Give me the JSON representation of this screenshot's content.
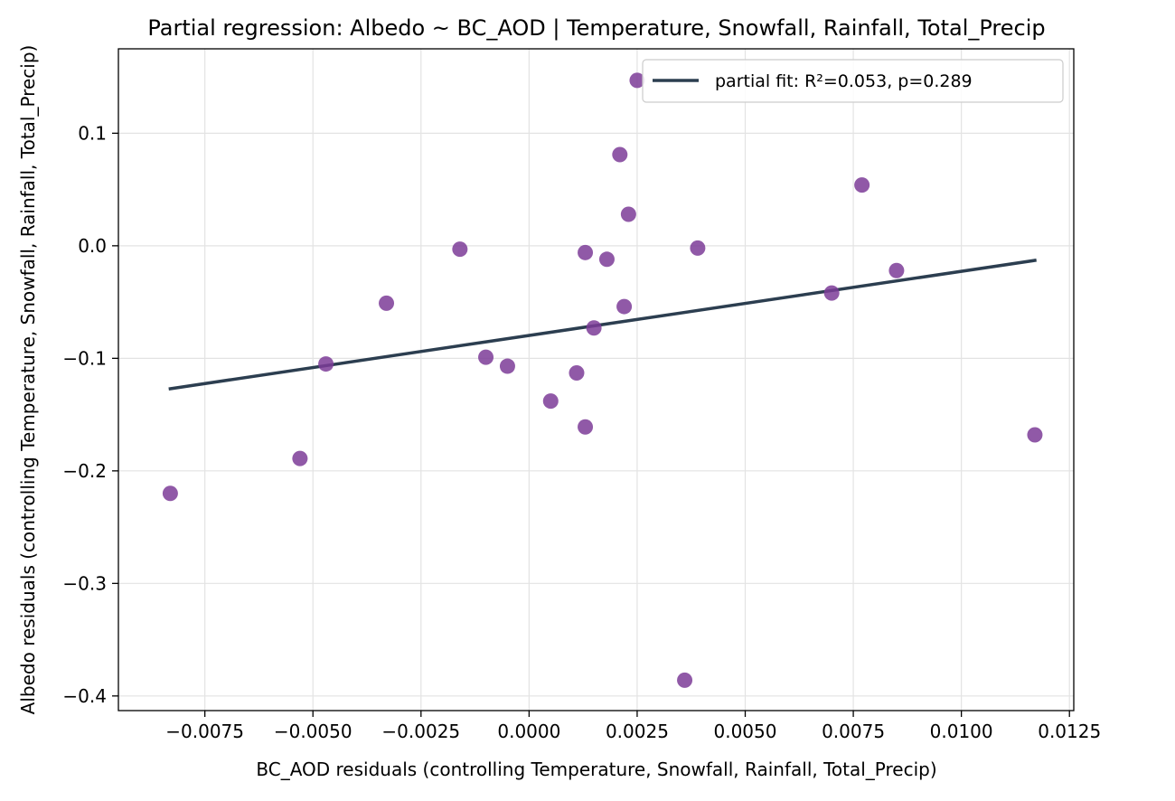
{
  "chart_data": {
    "type": "scatter",
    "title": "Partial regression: Albedo ~ BC_AOD | Temperature, Snowfall, Rainfall, Total_Precip",
    "xlabel": "BC_AOD residuals (controlling Temperature, Snowfall, Rainfall, Total_Precip)",
    "ylabel": "Albedo residuals (controlling Temperature, Snowfall, Rainfall, Total_Precip)",
    "xlim": [
      -0.0095,
      0.0126
    ],
    "ylim": [
      -0.413,
      0.175
    ],
    "x_ticks": [
      -0.0075,
      -0.005,
      -0.0025,
      0.0,
      0.0025,
      0.005,
      0.0075,
      0.01,
      0.0125
    ],
    "x_tick_labels": [
      "−0.0075",
      "−0.0050",
      "−0.0025",
      "0.0000",
      "0.0025",
      "0.0050",
      "0.0075",
      "0.0100",
      "0.0125"
    ],
    "y_ticks": [
      0.1,
      0.0,
      -0.1,
      -0.2,
      -0.3,
      -0.4
    ],
    "y_tick_labels": [
      "0.1",
      "0.0",
      "−0.1",
      "−0.2",
      "−0.3",
      "−0.4"
    ],
    "grid": true,
    "legend_position": "top-right",
    "colors": {
      "points": "#7d3c98",
      "fit_line": "#2c3e50",
      "grid": "#e3e3e3",
      "axes": "#000000"
    },
    "series": [
      {
        "type": "scatter",
        "points": [
          {
            "x": -0.0083,
            "y": -0.22
          },
          {
            "x": -0.0053,
            "y": -0.189
          },
          {
            "x": -0.0047,
            "y": -0.105
          },
          {
            "x": -0.0033,
            "y": -0.051
          },
          {
            "x": -0.0016,
            "y": -0.003
          },
          {
            "x": -0.001,
            "y": -0.099
          },
          {
            "x": -0.0005,
            "y": -0.107
          },
          {
            "x": 0.0005,
            "y": -0.138
          },
          {
            "x": 0.0011,
            "y": -0.113
          },
          {
            "x": 0.0013,
            "y": -0.006
          },
          {
            "x": 0.0013,
            "y": -0.161
          },
          {
            "x": 0.0015,
            "y": -0.073
          },
          {
            "x": 0.0018,
            "y": -0.012
          },
          {
            "x": 0.0021,
            "y": 0.081
          },
          {
            "x": 0.0023,
            "y": 0.028
          },
          {
            "x": 0.0022,
            "y": -0.054
          },
          {
            "x": 0.0025,
            "y": 0.147
          },
          {
            "x": 0.0036,
            "y": -0.386
          },
          {
            "x": 0.0039,
            "y": -0.002
          },
          {
            "x": 0.007,
            "y": -0.042
          },
          {
            "x": 0.0077,
            "y": 0.054
          },
          {
            "x": 0.0085,
            "y": -0.022
          },
          {
            "x": 0.0117,
            "y": -0.168
          }
        ]
      },
      {
        "type": "line",
        "name": "partial fit: R²=0.053, p=0.289",
        "x": [
          -0.0083,
          0.0117
        ],
        "y": [
          -0.127,
          -0.013
        ]
      }
    ]
  }
}
